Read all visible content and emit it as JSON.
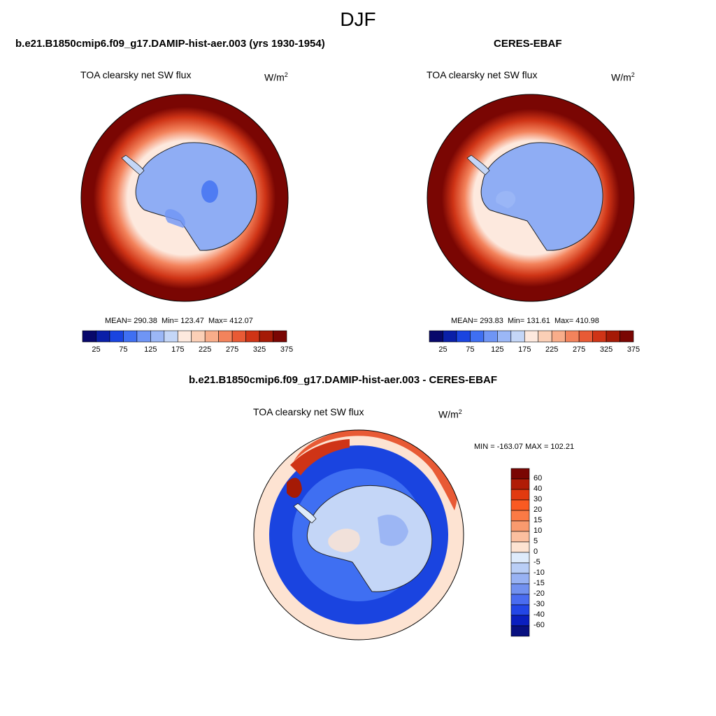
{
  "figure": {
    "season": "DJF",
    "left_panel": {
      "header": "b.e21.B1850cmip6.f09_g17.DAMIP-hist-aer.003 (yrs 1930-1954)",
      "variable": "TOA clearsky net SW flux",
      "units_base": "W/m",
      "units_exp": "2",
      "mean_text": "MEAN= 290.38",
      "min_text": "Min= 123.47",
      "max_text": "Max= 412.07"
    },
    "right_panel": {
      "header": "CERES-EBAF",
      "variable": "TOA clearsky net SW flux",
      "units_base": "W/m",
      "units_exp": "2",
      "mean_text": "MEAN= 293.83",
      "min_text": "Min= 131.61",
      "max_text": "Max= 410.98"
    },
    "diff_panel": {
      "header": "b.e21.B1850cmip6.f09_g17.DAMIP-hist-aer.003 - CERES-EBAF",
      "variable": "TOA clearsky net SW flux",
      "units_base": "W/m",
      "units_exp": "2",
      "minmax_text": "MIN = -163.07 MAX = 102.21"
    },
    "abs_colorbar": {
      "tick_labels": [
        "25",
        "75",
        "125",
        "175",
        "225",
        "275",
        "325",
        "375"
      ],
      "colors": [
        "#08086b",
        "#0a1fa8",
        "#1a44e0",
        "#3f6ff2",
        "#6f95f5",
        "#9bb7f6",
        "#c4d6f7",
        "#fde9de",
        "#fbcfb6",
        "#f8ad8a",
        "#f3835c",
        "#e85a35",
        "#cf3416",
        "#a51a06",
        "#7a0603"
      ]
    },
    "diff_colorbar": {
      "tick_labels": [
        "60",
        "40",
        "30",
        "20",
        "15",
        "10",
        "5",
        "0",
        "-5",
        "-10",
        "-15",
        "-20",
        "-30",
        "-40",
        "-60"
      ],
      "colors": [
        "#7a0603",
        "#b01c06",
        "#e23a10",
        "#fa5a22",
        "#fb7a45",
        "#f99a6e",
        "#fbbf9f",
        "#fde3d2",
        "#deebfb",
        "#b9cef6",
        "#98b2f3",
        "#7291ef",
        "#4a6cf0",
        "#2346e6",
        "#0a1fbf",
        "#081080"
      ]
    }
  }
}
